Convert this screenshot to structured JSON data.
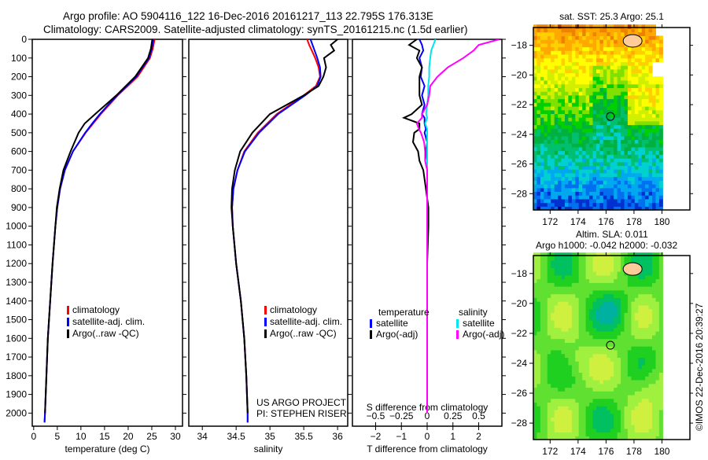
{
  "title_line1": "Argo profile: AO 5904116_122 16-Dec-2016 20161217_113 22.795S 176.313E",
  "title_line2": "Climatology: CARS2009. Satellite-adjusted climatology: synTS_20161215.nc (1.5d earlier)",
  "credit": "US ARGO PROJECT",
  "pi": "PI: STEPHEN RISER",
  "stamp": "©IMOS 22-Dec-2016 20:39:27",
  "colors": {
    "climatology": "#ff0000",
    "satellite": "#0000ff",
    "argo": "#000000",
    "sal_satellite": "#00e5ee",
    "sal_argo": "#ff00ff"
  },
  "chart_data": [
    {
      "type": "line",
      "xlabel": "temperature (deg C)",
      "ylabel": "",
      "xlim": [
        -0.3,
        31.5
      ],
      "ylim": [
        2070,
        0
      ],
      "xticks": [
        0,
        5,
        10,
        15,
        20,
        25,
        30
      ],
      "yticks": [
        0,
        100,
        200,
        300,
        400,
        500,
        600,
        700,
        800,
        900,
        1000,
        1100,
        1200,
        1300,
        1400,
        1500,
        1600,
        1700,
        1800,
        1900,
        2000
      ],
      "legend": [
        "climatology",
        "satellite-adj. clim.",
        "Argo(..raw -QC)"
      ],
      "depth": [
        0,
        50,
        100,
        200,
        300,
        400,
        450,
        500,
        600,
        700,
        800,
        900,
        1000,
        1200,
        1400,
        1600,
        1800,
        2000,
        2050
      ],
      "series": [
        {
          "name": "climatology",
          "values": [
            25.6,
            25.2,
            24.6,
            22.0,
            17.8,
            14.2,
            12.6,
            11.0,
            8.3,
            6.6,
            5.6,
            5.0,
            4.6,
            4.0,
            3.5,
            3.0,
            2.7,
            2.4,
            2.3
          ]
        },
        {
          "name": "satellite-adj. clim.",
          "values": [
            25.3,
            25.0,
            24.4,
            21.7,
            17.6,
            14.0,
            12.4,
            10.9,
            8.3,
            6.6,
            5.6,
            5.0,
            4.6,
            4.0,
            3.5,
            3.0,
            2.7,
            2.4,
            2.3
          ]
        },
        {
          "name": "Argo(..raw -QC)",
          "values": [
            25.1,
            24.8,
            24.2,
            21.5,
            17.5,
            13.0,
            10.8,
            9.5,
            7.8,
            6.3,
            5.5,
            4.9,
            4.6,
            4.0,
            3.5,
            3.0,
            2.7,
            2.4,
            null
          ]
        }
      ]
    },
    {
      "type": "line",
      "xlabel": "salinity",
      "xlim": [
        33.8,
        36.15
      ],
      "ylim": [
        2070,
        0
      ],
      "xticks": [
        34,
        34.5,
        35,
        35.5,
        36
      ],
      "legend": [
        "climatology",
        "satellite-adj. clim.",
        "Argo(..raw -QC)"
      ],
      "depth": [
        0,
        30,
        60,
        100,
        150,
        200,
        250,
        300,
        400,
        500,
        600,
        700,
        800,
        900,
        1000,
        1200,
        1400,
        1600,
        1800,
        2000,
        2050
      ],
      "series": [
        {
          "name": "climatology",
          "values": [
            35.55,
            35.58,
            35.62,
            35.67,
            35.72,
            35.74,
            35.68,
            35.5,
            35.1,
            34.82,
            34.62,
            34.52,
            34.46,
            34.44,
            34.45,
            34.5,
            34.57,
            34.62,
            34.65,
            34.67,
            34.67
          ]
        },
        {
          "name": "satellite-adj. clim.",
          "values": [
            35.6,
            35.63,
            35.66,
            35.7,
            35.74,
            35.75,
            35.7,
            35.52,
            35.12,
            34.84,
            34.63,
            34.52,
            34.46,
            34.44,
            34.45,
            34.5,
            34.57,
            34.62,
            34.65,
            34.67,
            34.67
          ]
        },
        {
          "name": "Argo(..raw -QC)",
          "values": [
            36.0,
            35.9,
            35.95,
            35.8,
            35.83,
            35.79,
            35.72,
            35.5,
            35.0,
            34.74,
            34.56,
            34.48,
            34.44,
            34.43,
            34.45,
            34.5,
            34.57,
            34.62,
            34.65,
            34.67,
            null
          ]
        }
      ]
    },
    {
      "type": "line",
      "xlabel": "T difference from climatology",
      "x2label": "S difference from climatology",
      "xlim": [
        -2.9,
        2.9
      ],
      "x2lim": [
        -0.725,
        0.725
      ],
      "ylim": [
        2070,
        0
      ],
      "xticks": [
        -2,
        -1,
        0,
        1,
        2
      ],
      "x2ticks": [
        -0.5,
        -0.25,
        0,
        0.25,
        0.5
      ],
      "legend_titles": [
        "temperature",
        "salinity"
      ],
      "legend": [
        "satellite",
        "Argo(-adj)",
        "satellite",
        "Argo(-adj)"
      ],
      "depth": [
        0,
        30,
        60,
        100,
        150,
        200,
        250,
        300,
        350,
        400,
        420,
        450,
        480,
        500,
        550,
        600,
        650,
        700,
        800,
        900,
        1000,
        1200,
        1400,
        1600,
        1800,
        2000
      ],
      "series": [
        {
          "name": "temperature satellite",
          "axis": "T",
          "values": [
            -0.3,
            -0.2,
            -0.15,
            -0.3,
            -0.2,
            -0.25,
            -0.1,
            -0.2,
            -0.1,
            -0.2,
            -0.1,
            -0.1,
            -0.05,
            -0.1,
            0,
            -0.05,
            0,
            0,
            0,
            0,
            0,
            0,
            0,
            0,
            0,
            0
          ]
        },
        {
          "name": "temperature Argo(-adj)",
          "axis": "T",
          "values": [
            -0.4,
            -0.7,
            -0.3,
            -0.4,
            -0.2,
            -0.3,
            -0.3,
            -0.3,
            -0.2,
            -0.6,
            -0.9,
            -0.3,
            -0.3,
            -0.5,
            -0.55,
            -0.35,
            -0.3,
            -0.15,
            -0.05,
            0.05,
            0.05,
            0,
            0,
            0,
            0,
            0
          ]
        },
        {
          "name": "salinity satellite",
          "axis": "S",
          "values": [
            0.08,
            0.06,
            0.04,
            0.03,
            0.02,
            0.02,
            0.01,
            0.01,
            0,
            -0.01,
            0,
            -0.02,
            0,
            0,
            0,
            0,
            0,
            0,
            0,
            0,
            0,
            0,
            0,
            0,
            0,
            0
          ]
        },
        {
          "name": "salinity Argo(-adj)",
          "axis": "S",
          "values": [
            0.7,
            0.5,
            0.45,
            0.35,
            0.2,
            0.1,
            0.03,
            0.02,
            0.0,
            -0.05,
            -0.05,
            -0.1,
            -0.08,
            -0.06,
            -0.03,
            -0.02,
            -0.02,
            0,
            0,
            0,
            0,
            0,
            0,
            0,
            0,
            0
          ]
        }
      ]
    },
    {
      "type": "heatmap",
      "title": "sat. SST: 25.3 Argo: 25.1",
      "xlim": [
        170.8,
        182
      ],
      "ylim": [
        -29.1,
        -16.8
      ],
      "xticks": [
        172,
        174,
        176,
        178,
        180
      ],
      "yticks": [
        -18,
        -20,
        -22,
        -24,
        -26,
        -28
      ],
      "marker": [
        176.313,
        -22.795
      ]
    },
    {
      "type": "heatmap",
      "title": "Altim. SLA: 0.011",
      "subtitle": "Argo h1000: -0.042 h2000: -0.032",
      "xlim": [
        170.8,
        182
      ],
      "ylim": [
        -29.1,
        -16.8
      ],
      "xticks": [
        172,
        174,
        176,
        178,
        180
      ],
      "yticks": [
        -18,
        -20,
        -22,
        -24,
        -26,
        -28
      ],
      "marker": [
        176.313,
        -22.795
      ]
    }
  ]
}
